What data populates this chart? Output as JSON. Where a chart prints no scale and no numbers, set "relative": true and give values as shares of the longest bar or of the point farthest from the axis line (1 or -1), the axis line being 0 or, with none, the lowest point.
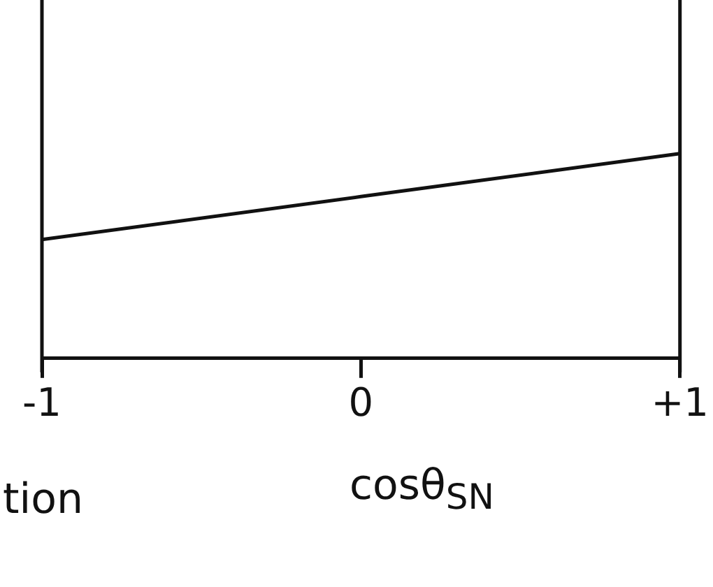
{
  "chart_data": {
    "type": "line",
    "relative": true,
    "x": [
      -1,
      0,
      1
    ],
    "series": [
      {
        "color": "#111111",
        "values": [
          0.58,
          0.79,
          1
        ]
      }
    ],
    "xlim": [
      -1,
      1
    ],
    "xticks": [
      -1,
      0,
      {
        "value": 1,
        "label": "+1"
      }
    ],
    "xlabel": "cosθ$_{SN}$",
    "annotations": [
      "tion"
    ],
    "grid": false,
    "legend": false,
    "marker": "none",
    "line_style": "solid"
  }
}
